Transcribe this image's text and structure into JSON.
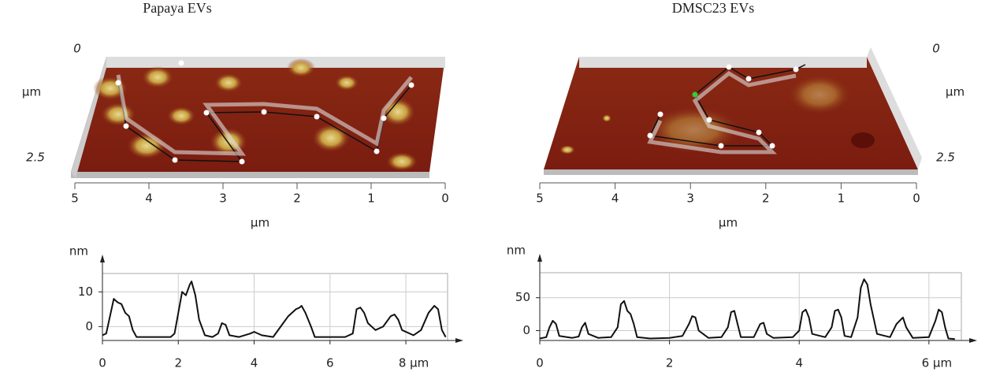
{
  "panels": [
    {
      "title": "Papaya EVs",
      "image": {
        "depth_ticks": [
          0,
          2.5
        ],
        "depth_unit": "µm",
        "x_ticks": [
          5,
          4,
          3,
          2,
          1,
          0
        ],
        "x_unit": "µm"
      }
    },
    {
      "title": "DMSC23 EVs",
      "image": {
        "depth_ticks": [
          0,
          2.5
        ],
        "depth_unit": "µm",
        "x_ticks": [
          5,
          4,
          3,
          2,
          1,
          0
        ],
        "x_unit": "µm"
      }
    }
  ],
  "chart_data": [
    {
      "type": "line",
      "y_label": "nm",
      "x": [
        0,
        0.1,
        0.2,
        0.3,
        0.4,
        0.5,
        0.6,
        0.7,
        0.8,
        0.9,
        1.2,
        1.5,
        1.8,
        1.9,
        2.0,
        2.1,
        2.2,
        2.3,
        2.35,
        2.45,
        2.55,
        2.7,
        2.9,
        3.05,
        3.15,
        3.25,
        3.35,
        3.6,
        3.9,
        4.0,
        4.2,
        4.5,
        4.7,
        4.9,
        5.1,
        5.2,
        5.25,
        5.35,
        5.5,
        5.6,
        6.0,
        6.4,
        6.6,
        6.7,
        6.8,
        6.9,
        7.0,
        7.2,
        7.4,
        7.6,
        7.7,
        7.8,
        7.9,
        8.2,
        8.4,
        8.6,
        8.75,
        8.85,
        8.95,
        9.05
      ],
      "series": [
        {
          "color": "#111111",
          "values": [
            -2.5,
            -2,
            3,
            8,
            7,
            6.5,
            4,
            3,
            -1,
            -3,
            -3,
            -3,
            -3,
            -2,
            4,
            10,
            9,
            12,
            13,
            9,
            2,
            -2.5,
            -3,
            -2,
            1,
            0.5,
            -2.5,
            -3,
            -2,
            -1.5,
            -2.5,
            -3,
            0,
            3,
            5,
            5.5,
            6,
            4,
            0,
            -3,
            -3,
            -3,
            -2,
            5,
            5.5,
            4,
            1,
            -1,
            0,
            3,
            3.5,
            2,
            -1,
            -2.5,
            -1,
            4,
            6,
            5,
            -1,
            -3
          ]
        }
      ],
      "xlim": [
        0,
        9.1
      ],
      "ylim": [
        -4,
        15.3
      ],
      "xticks": [
        0,
        2,
        4,
        6,
        {
          "value": 8,
          "label": "8 µm"
        }
      ],
      "yticks": [
        0,
        10
      ],
      "grid": true
    },
    {
      "type": "line",
      "y_label": "nm",
      "x": [
        0,
        0.1,
        0.15,
        0.2,
        0.25,
        0.3,
        0.5,
        0.6,
        0.65,
        0.7,
        0.75,
        0.9,
        1.1,
        1.2,
        1.25,
        1.3,
        1.35,
        1.4,
        1.45,
        1.5,
        1.7,
        2.0,
        2.2,
        2.3,
        2.35,
        2.4,
        2.45,
        2.6,
        2.8,
        2.9,
        2.95,
        3.0,
        3.05,
        3.1,
        3.3,
        3.4,
        3.45,
        3.5,
        3.6,
        3.9,
        4.0,
        4.05,
        4.1,
        4.15,
        4.2,
        4.4,
        4.5,
        4.55,
        4.6,
        4.65,
        4.7,
        4.8,
        4.9,
        4.95,
        5.0,
        5.05,
        5.1,
        5.2,
        5.4,
        5.5,
        5.6,
        5.65,
        5.75,
        6.0,
        6.1,
        6.15,
        6.2,
        6.25,
        6.3,
        6.4
      ],
      "series": [
        {
          "color": "#111111",
          "values": [
            -12,
            -10,
            5,
            15,
            10,
            -8,
            -11,
            -9,
            5,
            12,
            -5,
            -11,
            -10,
            5,
            40,
            45,
            30,
            25,
            10,
            -10,
            -12,
            -11,
            -8,
            10,
            22,
            20,
            0,
            -11,
            -10,
            5,
            28,
            30,
            10,
            -10,
            -10,
            10,
            12,
            -5,
            -11,
            -10,
            0,
            28,
            32,
            20,
            -5,
            -10,
            5,
            30,
            32,
            20,
            -8,
            -10,
            20,
            65,
            78,
            70,
            40,
            -5,
            -10,
            10,
            20,
            5,
            -11,
            -10,
            15,
            32,
            28,
            5,
            -12,
            -13
          ]
        }
      ],
      "xlim": [
        0,
        6.5
      ],
      "ylim": [
        -15,
        88
      ],
      "xticks": [
        0,
        2,
        4,
        {
          "value": 6,
          "label": "6 µm"
        }
      ],
      "yticks": [
        0,
        50
      ],
      "grid": true
    }
  ]
}
